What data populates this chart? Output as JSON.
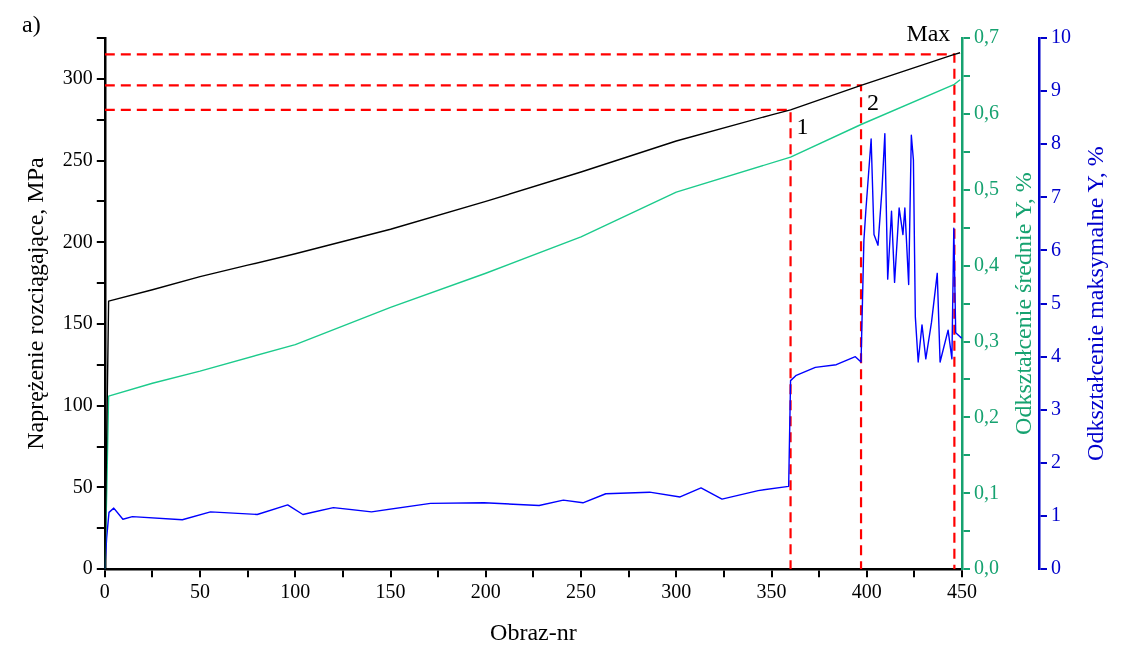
{
  "chart_data": {
    "type": "line",
    "xlabel": "Obraz-nr",
    "ylabel": "Naprężenie rozciągające, MPa",
    "y2label": "Odkształcenie średnie Y, %",
    "y3label": "Odkształcenie maksymalne Y, %",
    "annotations": [
      "a)",
      {
        "text": "Max",
        "x": 446,
        "y": 315
      },
      {
        "text": "1",
        "x": 360,
        "y": 281
      },
      {
        "text": "2",
        "x": 397,
        "y": 296
      }
    ],
    "xlim": [
      0,
      450
    ],
    "xticks": [
      0,
      {
        "value": 25,
        "label": null
      },
      50,
      {
        "value": 75,
        "label": null
      },
      100,
      {
        "value": 125,
        "label": null
      },
      150,
      {
        "value": 175,
        "label": null
      },
      200,
      {
        "value": 225,
        "label": null
      },
      250,
      {
        "value": 275,
        "label": null
      },
      300,
      {
        "value": 325,
        "label": null
      },
      350,
      {
        "value": 375,
        "label": null
      },
      400,
      {
        "value": 425,
        "label": null
      },
      450
    ],
    "ylim": [
      0,
      325
    ],
    "yticks": [
      0,
      {
        "value": 25,
        "label": null
      },
      50,
      {
        "value": 75,
        "label": null
      },
      100,
      {
        "value": 125,
        "label": null
      },
      150,
      {
        "value": 175,
        "label": null
      },
      200,
      {
        "value": 225,
        "label": null
      },
      250,
      {
        "value": 275,
        "label": null
      },
      300,
      {
        "value": 325,
        "label": null
      }
    ],
    "y2lim": [
      0,
      0.7
    ],
    "y2ticks": [
      {
        "value": 0,
        "label": "0,0"
      },
      {
        "value": 0.05,
        "label": null
      },
      {
        "value": 0.1,
        "label": "0,1"
      },
      {
        "value": 0.15,
        "label": null
      },
      {
        "value": 0.2,
        "label": "0,2"
      },
      {
        "value": 0.25,
        "label": null
      },
      {
        "value": 0.3,
        "label": "0,3"
      },
      {
        "value": 0.35,
        "label": null
      },
      {
        "value": 0.4,
        "label": "0,4"
      },
      {
        "value": 0.45,
        "label": null
      },
      {
        "value": 0.5,
        "label": "0,5"
      },
      {
        "value": 0.55,
        "label": null
      },
      {
        "value": 0.6,
        "label": "0,6"
      },
      {
        "value": 0.65,
        "label": null
      },
      {
        "value": 0.7,
        "label": "0,7"
      }
    ],
    "y3lim": [
      0,
      10
    ],
    "y3ticks": [
      0,
      1,
      2,
      3,
      4,
      5,
      6,
      7,
      8,
      9,
      10
    ],
    "grid": false,
    "legend": false,
    "marker": "none",
    "series": [
      {
        "color": "#000000",
        "x": [
          0,
          1,
          2,
          25,
          50,
          75,
          100,
          150,
          200,
          250,
          300,
          350,
          360,
          397,
          446,
          449
        ],
        "values": [
          0,
          80,
          164,
          171,
          179,
          186,
          193,
          208,
          225,
          243,
          262,
          278,
          281,
          296,
          315,
          316
        ]
      },
      {
        "color": "#1ccb8c",
        "axis": "y2",
        "x": [
          0,
          1,
          2,
          25,
          50,
          100,
          150,
          200,
          250,
          300,
          360,
          397,
          446,
          449
        ],
        "values": [
          0,
          0.1,
          0.228,
          0.245,
          0.261,
          0.296,
          0.345,
          0.39,
          0.438,
          0.497,
          0.543,
          0.586,
          0.639,
          0.645
        ]
      },
      {
        "color": "#0000ff",
        "axis": "y3",
        "x": [
          0,
          1,
          2.2,
          4.7,
          9.5,
          14.5,
          40.7,
          55.5,
          80,
          96,
          104,
          120,
          140,
          171,
          199,
          228,
          240.7,
          251,
          263,
          286,
          302,
          313,
          324,
          343,
          359,
          360,
          363,
          373,
          384,
          394,
          397,
          398.5,
          399.5,
          402.3,
          403.8,
          405.9,
          408,
          409.5,
          411,
          413,
          414.6,
          417,
          419,
          420,
          422,
          423.4,
          424.5,
          425.5,
          427,
          429,
          431,
          434,
          437,
          438.5,
          442.7,
          444.7,
          445.7,
          446.7,
          449.8
        ],
        "values": [
          0,
          0.6,
          1.07,
          1.15,
          0.94,
          0.99,
          0.93,
          1.08,
          1.03,
          1.21,
          1.03,
          1.16,
          1.08,
          1.24,
          1.25,
          1.2,
          1.3,
          1.25,
          1.42,
          1.45,
          1.36,
          1.53,
          1.32,
          1.48,
          1.56,
          3.55,
          3.65,
          3.8,
          3.85,
          4.0,
          3.9,
          6.19,
          6.74,
          8.1,
          6.3,
          6.1,
          7.15,
          8.2,
          5.46,
          6.74,
          5.4,
          6.8,
          6.3,
          6.8,
          5.36,
          8.17,
          7.7,
          4.75,
          3.9,
          4.6,
          3.96,
          4.65,
          5.57,
          3.9,
          4.5,
          3.96,
          6.42,
          4.45,
          4.35
        ]
      },
      {
        "color": "#ff0000",
        "line_style": "dashed",
        "x": [
          0,
          360,
          360
        ],
        "values": [
          281,
          281,
          0
        ]
      },
      {
        "color": "#ff0000",
        "line_style": "dashed",
        "x": [
          0,
          397,
          397
        ],
        "values": [
          296,
          296,
          0
        ]
      },
      {
        "color": "#ff0000",
        "line_style": "dashed",
        "x": [
          0,
          446,
          446
        ],
        "values": [
          315,
          315,
          0
        ]
      }
    ]
  }
}
